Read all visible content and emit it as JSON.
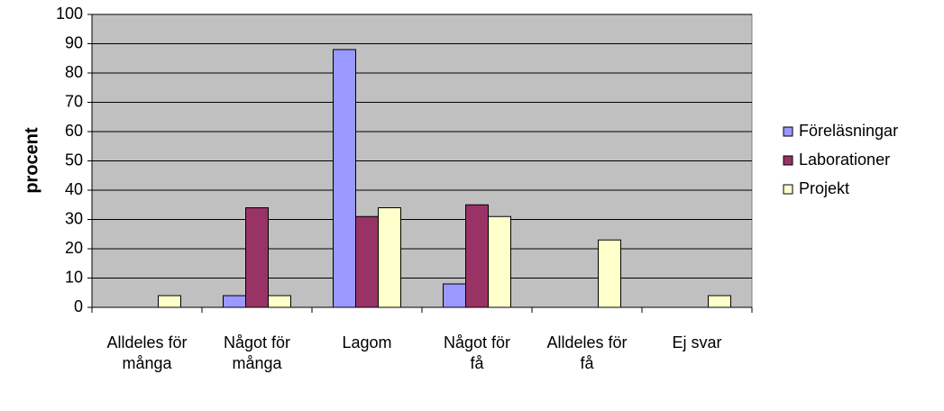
{
  "chart_data": {
    "type": "bar",
    "ylabel": "procent",
    "categories": [
      "Alldeles för många",
      "Något för många",
      "Lagom",
      "Något för få",
      "Alldeles för få",
      "Ej svar"
    ],
    "series": [
      {
        "name": "Föreläsningar",
        "color": "#9999ff",
        "values": [
          0,
          4,
          88,
          8,
          0,
          0
        ]
      },
      {
        "name": "Laborationer",
        "color": "#993366",
        "values": [
          0,
          34,
          31,
          35,
          0,
          0
        ]
      },
      {
        "name": "Projekt",
        "color": "#ffffcc",
        "values": [
          4,
          4,
          34,
          31,
          23,
          4
        ]
      }
    ],
    "ylim": [
      0,
      100
    ],
    "yticks": [
      0,
      10,
      20,
      30,
      40,
      50,
      60,
      70,
      80,
      90,
      100
    ],
    "grid": true,
    "plot_background": "#c0c0c0",
    "legend": "right"
  }
}
